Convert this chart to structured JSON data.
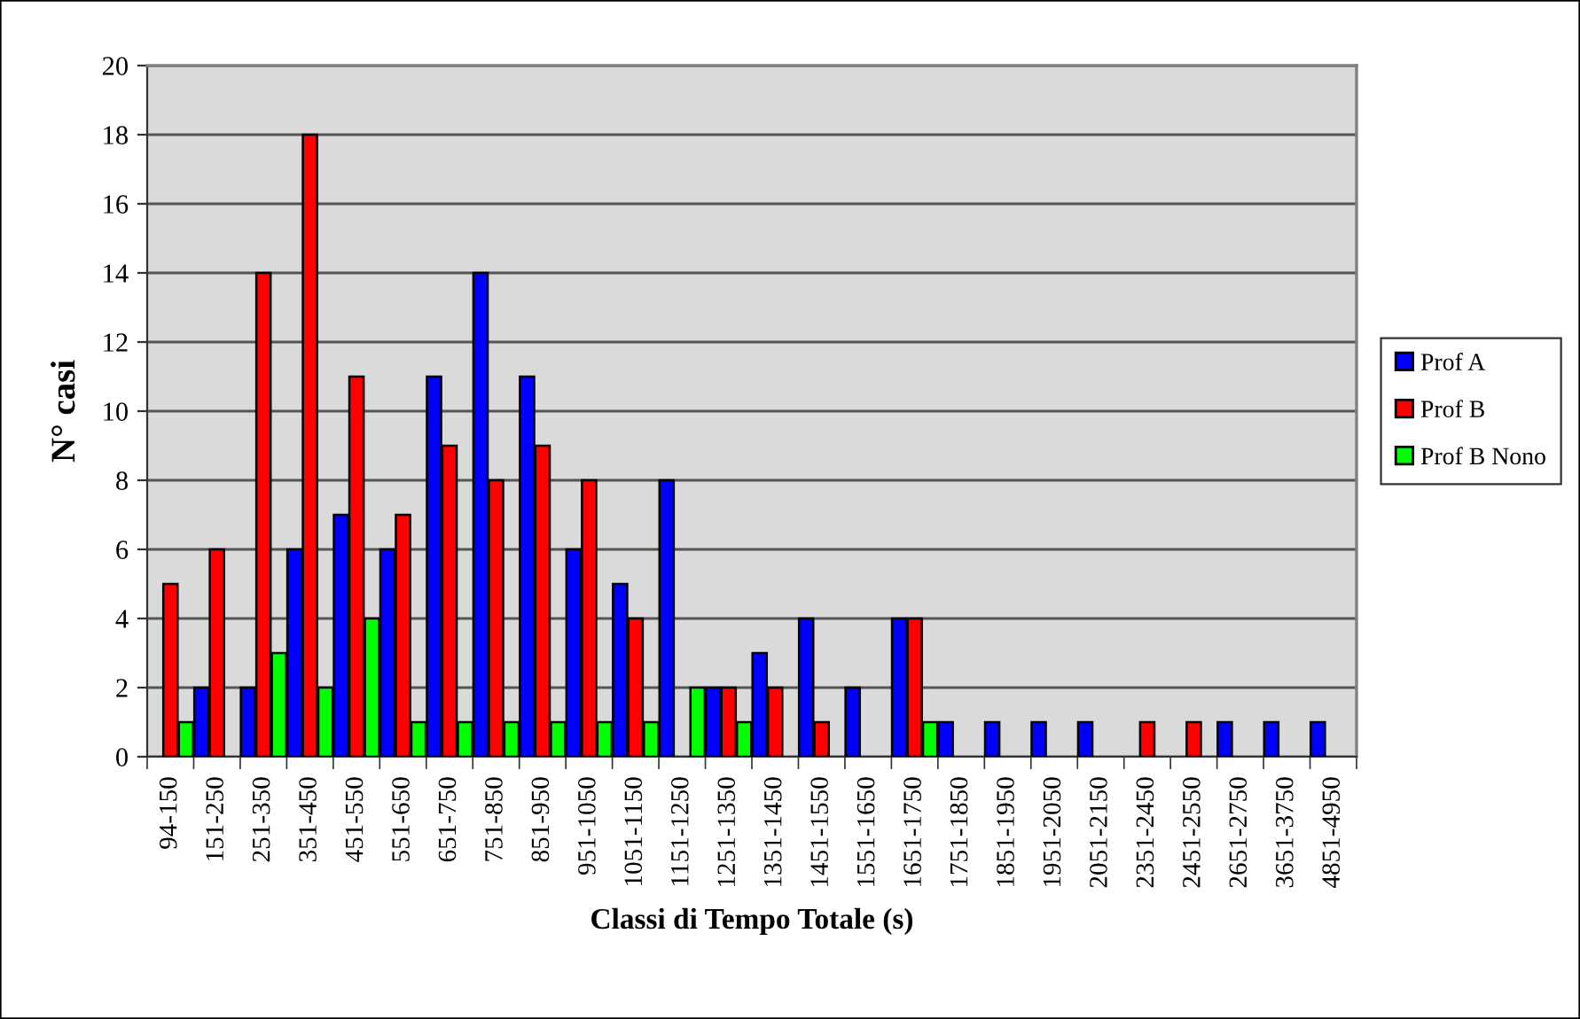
{
  "chart_data": {
    "type": "bar",
    "xlabel": "Classi di Tempo Totale (s)",
    "ylabel": "N° casi",
    "categories": [
      "94-150",
      "151-250",
      "251-350",
      "351-450",
      "451-550",
      "551-650",
      "651-750",
      "751-850",
      "851-950",
      "951-1050",
      "1051-1150",
      "1151-1250",
      "1251-1350",
      "1351-1450",
      "1451-1550",
      "1551-1650",
      "1651-1750",
      "1751-1850",
      "1851-1950",
      "1951-2050",
      "2051-2150",
      "2351-2450",
      "2451-2550",
      "2651-2750",
      "3651-3750",
      "4851-4950"
    ],
    "series": [
      {
        "name": "Prof A",
        "color": "#0000ff",
        "values": [
          null,
          2,
          2,
          6,
          7,
          6,
          11,
          14,
          11,
          6,
          5,
          8,
          2,
          3,
          4,
          2,
          4,
          1,
          1,
          1,
          1,
          null,
          null,
          1,
          1,
          1
        ]
      },
      {
        "name": "Prof B",
        "color": "#ff0000",
        "values": [
          5,
          6,
          14,
          18,
          11,
          7,
          9,
          8,
          9,
          8,
          4,
          null,
          2,
          2,
          1,
          null,
          4,
          null,
          null,
          null,
          null,
          1,
          1,
          null,
          null,
          null
        ]
      },
      {
        "name": "Prof B Nono",
        "color": "#00ff00",
        "values": [
          1,
          null,
          3,
          2,
          4,
          1,
          1,
          1,
          1,
          1,
          1,
          2,
          1,
          null,
          null,
          null,
          1,
          null,
          null,
          null,
          null,
          null,
          null,
          null,
          null,
          null
        ]
      }
    ],
    "ylim": [
      0,
      20
    ],
    "yticks": [
      0,
      2,
      4,
      6,
      8,
      10,
      12,
      14,
      16,
      18,
      20
    ],
    "grid": "y",
    "legend": "right"
  }
}
